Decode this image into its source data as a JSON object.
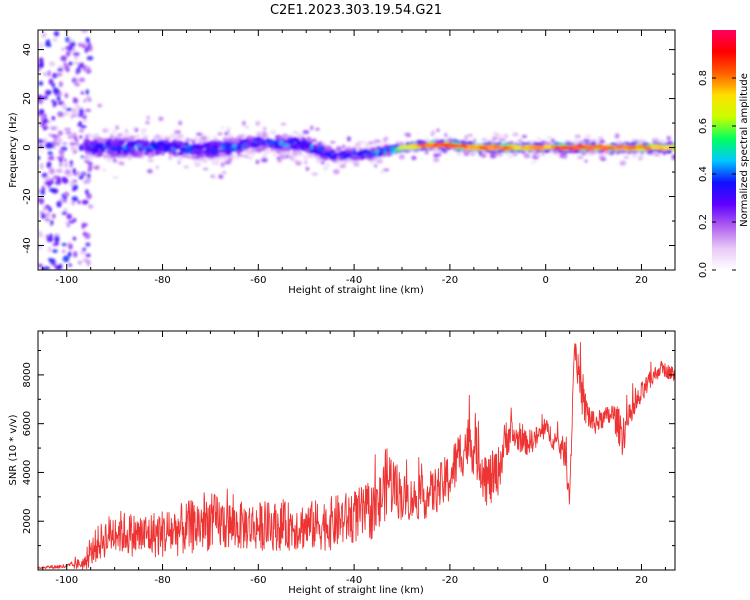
{
  "title": "C2E1.2023.303.19.54.G21",
  "chart_data": [
    {
      "type": "heatmap",
      "xlabel": "Height of straight line (km)",
      "ylabel": "Frequency (Hz)",
      "xlim": [
        -106,
        27
      ],
      "ylim": [
        -50,
        48
      ],
      "x_ticks": [
        -100,
        -80,
        -60,
        -40,
        -20,
        0,
        20
      ],
      "y_ticks": [
        -40,
        -20,
        0,
        20,
        40
      ],
      "grid": false,
      "colorbar": {
        "label": "Normalized spectral amplitude",
        "range": [
          0,
          1
        ],
        "ticks": [
          0.0,
          0.2,
          0.4,
          0.6,
          0.8
        ],
        "colormap": [
          "#ffffff",
          "#e8c8f8",
          "#b060f0",
          "#6000ff",
          "#1010ff",
          "#00c8ff",
          "#00ff60",
          "#c8ff00",
          "#ffe000",
          "#ff6000",
          "#ff0000",
          "#ff0060"
        ]
      },
      "ridge": {
        "x": [
          -106,
          -100,
          -90,
          -80,
          -70,
          -60,
          -50,
          -45,
          -40,
          -35,
          -30,
          -25,
          -20,
          -15,
          -10,
          -5,
          0,
          5,
          10,
          15,
          20,
          27
        ],
        "frequency": [
          0,
          1,
          0,
          0,
          -1,
          2,
          1,
          -3,
          -3,
          -2,
          0,
          1,
          1,
          0,
          0,
          0,
          0,
          0,
          0,
          0,
          0,
          0
        ],
        "peak_amplitude": [
          0.35,
          0.4,
          0.45,
          0.45,
          0.45,
          0.45,
          0.5,
          0.45,
          0.45,
          0.55,
          0.7,
          0.9,
          0.95,
          0.85,
          0.9,
          0.8,
          0.85,
          0.9,
          0.9,
          0.85,
          0.85,
          0.8
        ],
        "spread_hz": [
          22,
          12,
          8,
          7,
          7,
          6,
          6,
          5,
          4,
          4,
          3,
          3,
          3,
          3,
          3,
          3,
          3,
          3,
          3,
          3,
          3,
          3
        ]
      },
      "noise_band": {
        "x_from": -106,
        "x_to": -95,
        "amplitude": 0.3
      }
    },
    {
      "type": "line",
      "xlabel": "Height of straight line (km)",
      "ylabel": "SNR (10 * v/v)",
      "xlim": [
        -106,
        27
      ],
      "ylim": [
        0,
        9800
      ],
      "x_ticks": [
        -100,
        -80,
        -60,
        -40,
        -20,
        0,
        20
      ],
      "y_ticks": [
        2000,
        4000,
        6000,
        8000
      ],
      "grid": false,
      "color": "#ee3333",
      "series": [
        {
          "x": [
            -106,
            -100,
            -96,
            -94,
            -92,
            -90,
            -85,
            -80,
            -75,
            -70,
            -65,
            -60,
            -55,
            -50,
            -45,
            -40,
            -35,
            -33,
            -30,
            -28,
            -25,
            -22,
            -20,
            -18,
            -16,
            -14,
            -12,
            -10,
            -8,
            -6,
            -4,
            -2,
            0,
            2,
            4,
            5,
            6,
            7,
            8,
            10,
            12,
            14,
            16,
            18,
            20,
            22,
            24,
            27
          ],
          "mean": [
            100,
            150,
            300,
            1000,
            1300,
            1600,
            1400,
            1500,
            1700,
            2000,
            1800,
            1800,
            1800,
            1800,
            1900,
            2200,
            2500,
            3800,
            3000,
            2900,
            3000,
            3400,
            3800,
            4700,
            5300,
            4600,
            3600,
            4000,
            5600,
            5400,
            5200,
            5400,
            5800,
            5300,
            4800,
            3000,
            9300,
            7800,
            6700,
            6000,
            6200,
            6400,
            5600,
            6400,
            7200,
            7800,
            8300,
            8000
          ],
          "noise": [
            50,
            100,
            300,
            700,
            800,
            900,
            900,
            1000,
            1100,
            1200,
            1000,
            1000,
            1000,
            1000,
            1100,
            1100,
            1200,
            1500,
            1000,
            900,
            900,
            1000,
            1100,
            1100,
            1100,
            1100,
            1200,
            1000,
            900,
            500,
            500,
            500,
            400,
            500,
            600,
            600,
            400,
            800,
            800,
            500,
            400,
            500,
            900,
            500,
            500,
            400,
            300,
            300
          ]
        }
      ]
    }
  ]
}
